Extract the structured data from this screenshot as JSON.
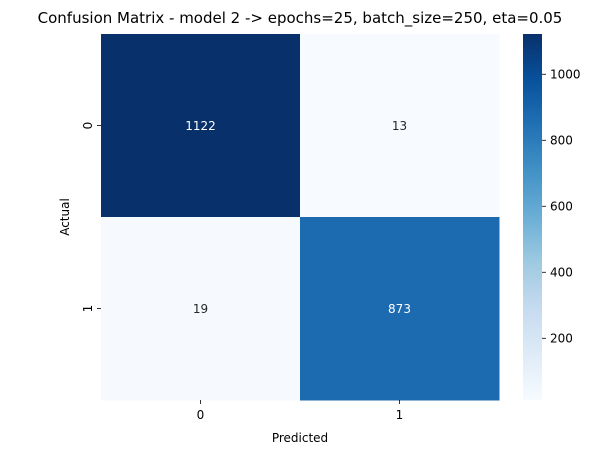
{
  "chart_data": {
    "type": "heatmap",
    "title": "Confusion Matrix - model 2 -> epochs=25, batch_size=250, eta=0.05",
    "xlabel": "Predicted",
    "ylabel": "Actual",
    "x_categories": [
      "0",
      "1"
    ],
    "y_categories": [
      "0",
      "1"
    ],
    "values": [
      [
        1122,
        13
      ],
      [
        19,
        873
      ]
    ],
    "colormap": "Blues",
    "colorbar": {
      "vmin": 13,
      "vmax": 1122,
      "ticks": [
        200,
        400,
        600,
        800,
        1000
      ],
      "tick_labels": [
        "200",
        "400",
        "600",
        "800",
        "1000"
      ]
    },
    "grid": false,
    "legend": "colorbar-right"
  }
}
